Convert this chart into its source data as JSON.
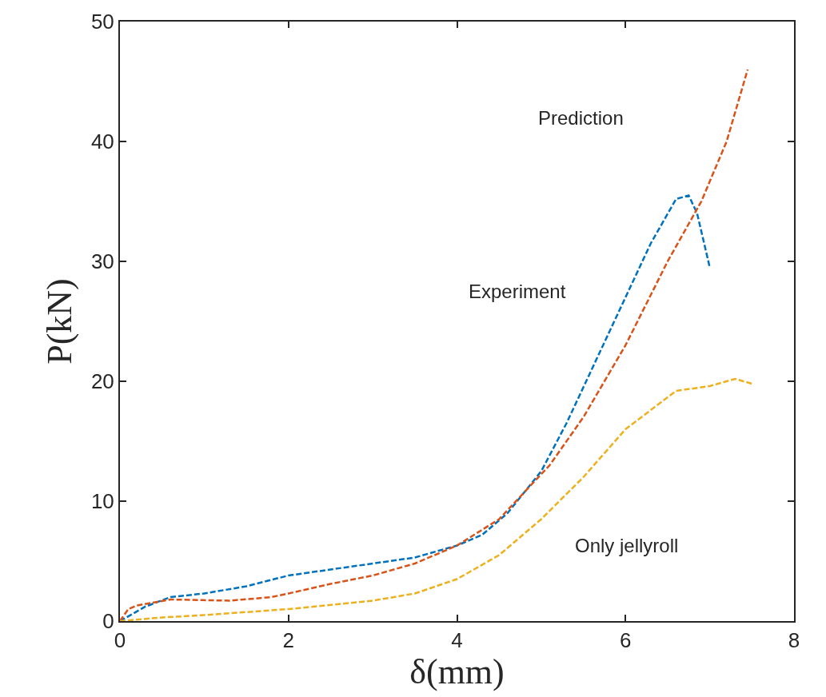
{
  "chart_data": {
    "type": "line",
    "xlabel": "δ(mm)",
    "ylabel": "P(kN)",
    "xlim": [
      0,
      8
    ],
    "ylim": [
      0,
      50
    ],
    "xticks": [
      0,
      2,
      4,
      6,
      8
    ],
    "yticks": [
      0,
      10,
      20,
      30,
      40,
      50
    ],
    "line_style": "dashed",
    "marker": "none",
    "series": [
      {
        "color": "#0072bd",
        "x": [
          0,
          0.3,
          0.6,
          1.0,
          1.5,
          2,
          2.5,
          3,
          3.5,
          4,
          4.3,
          4.6,
          5,
          5.3,
          5.6,
          6,
          6.3,
          6.6,
          6.75,
          6.85,
          6.95,
          7.0
        ],
        "values": [
          0,
          1.2,
          2.0,
          2.3,
          2.9,
          3.8,
          4.3,
          4.8,
          5.3,
          6.3,
          7.2,
          9,
          12.5,
          16.5,
          21,
          27,
          31.5,
          35.2,
          35.5,
          34,
          31,
          29.5
        ]
      },
      {
        "color": "#d95319",
        "x": [
          0,
          0.1,
          0.2,
          0.6,
          1.3,
          1.8,
          2,
          2.5,
          3,
          3.5,
          4,
          4.5,
          5.1,
          5.5,
          6,
          6.5,
          6.9,
          7.2,
          7.45
        ],
        "values": [
          0,
          1.0,
          1.3,
          1.8,
          1.7,
          2.0,
          2.3,
          3.1,
          3.8,
          4.8,
          6.3,
          8.5,
          13,
          17,
          23,
          30,
          35,
          40,
          46
        ]
      },
      {
        "color": "#edb120",
        "x": [
          0,
          0.5,
          1,
          2,
          3,
          3.5,
          4,
          4.5,
          5,
          5.5,
          6,
          6.6,
          7,
          7.3,
          7.5
        ],
        "values": [
          0,
          0.3,
          0.5,
          1.0,
          1.7,
          2.3,
          3.5,
          5.5,
          8.5,
          12,
          16,
          19.2,
          19.6,
          20.2,
          19.8
        ]
      }
    ],
    "annotations": [
      "Prediction",
      "Experiment",
      "Only jellyroll"
    ]
  }
}
